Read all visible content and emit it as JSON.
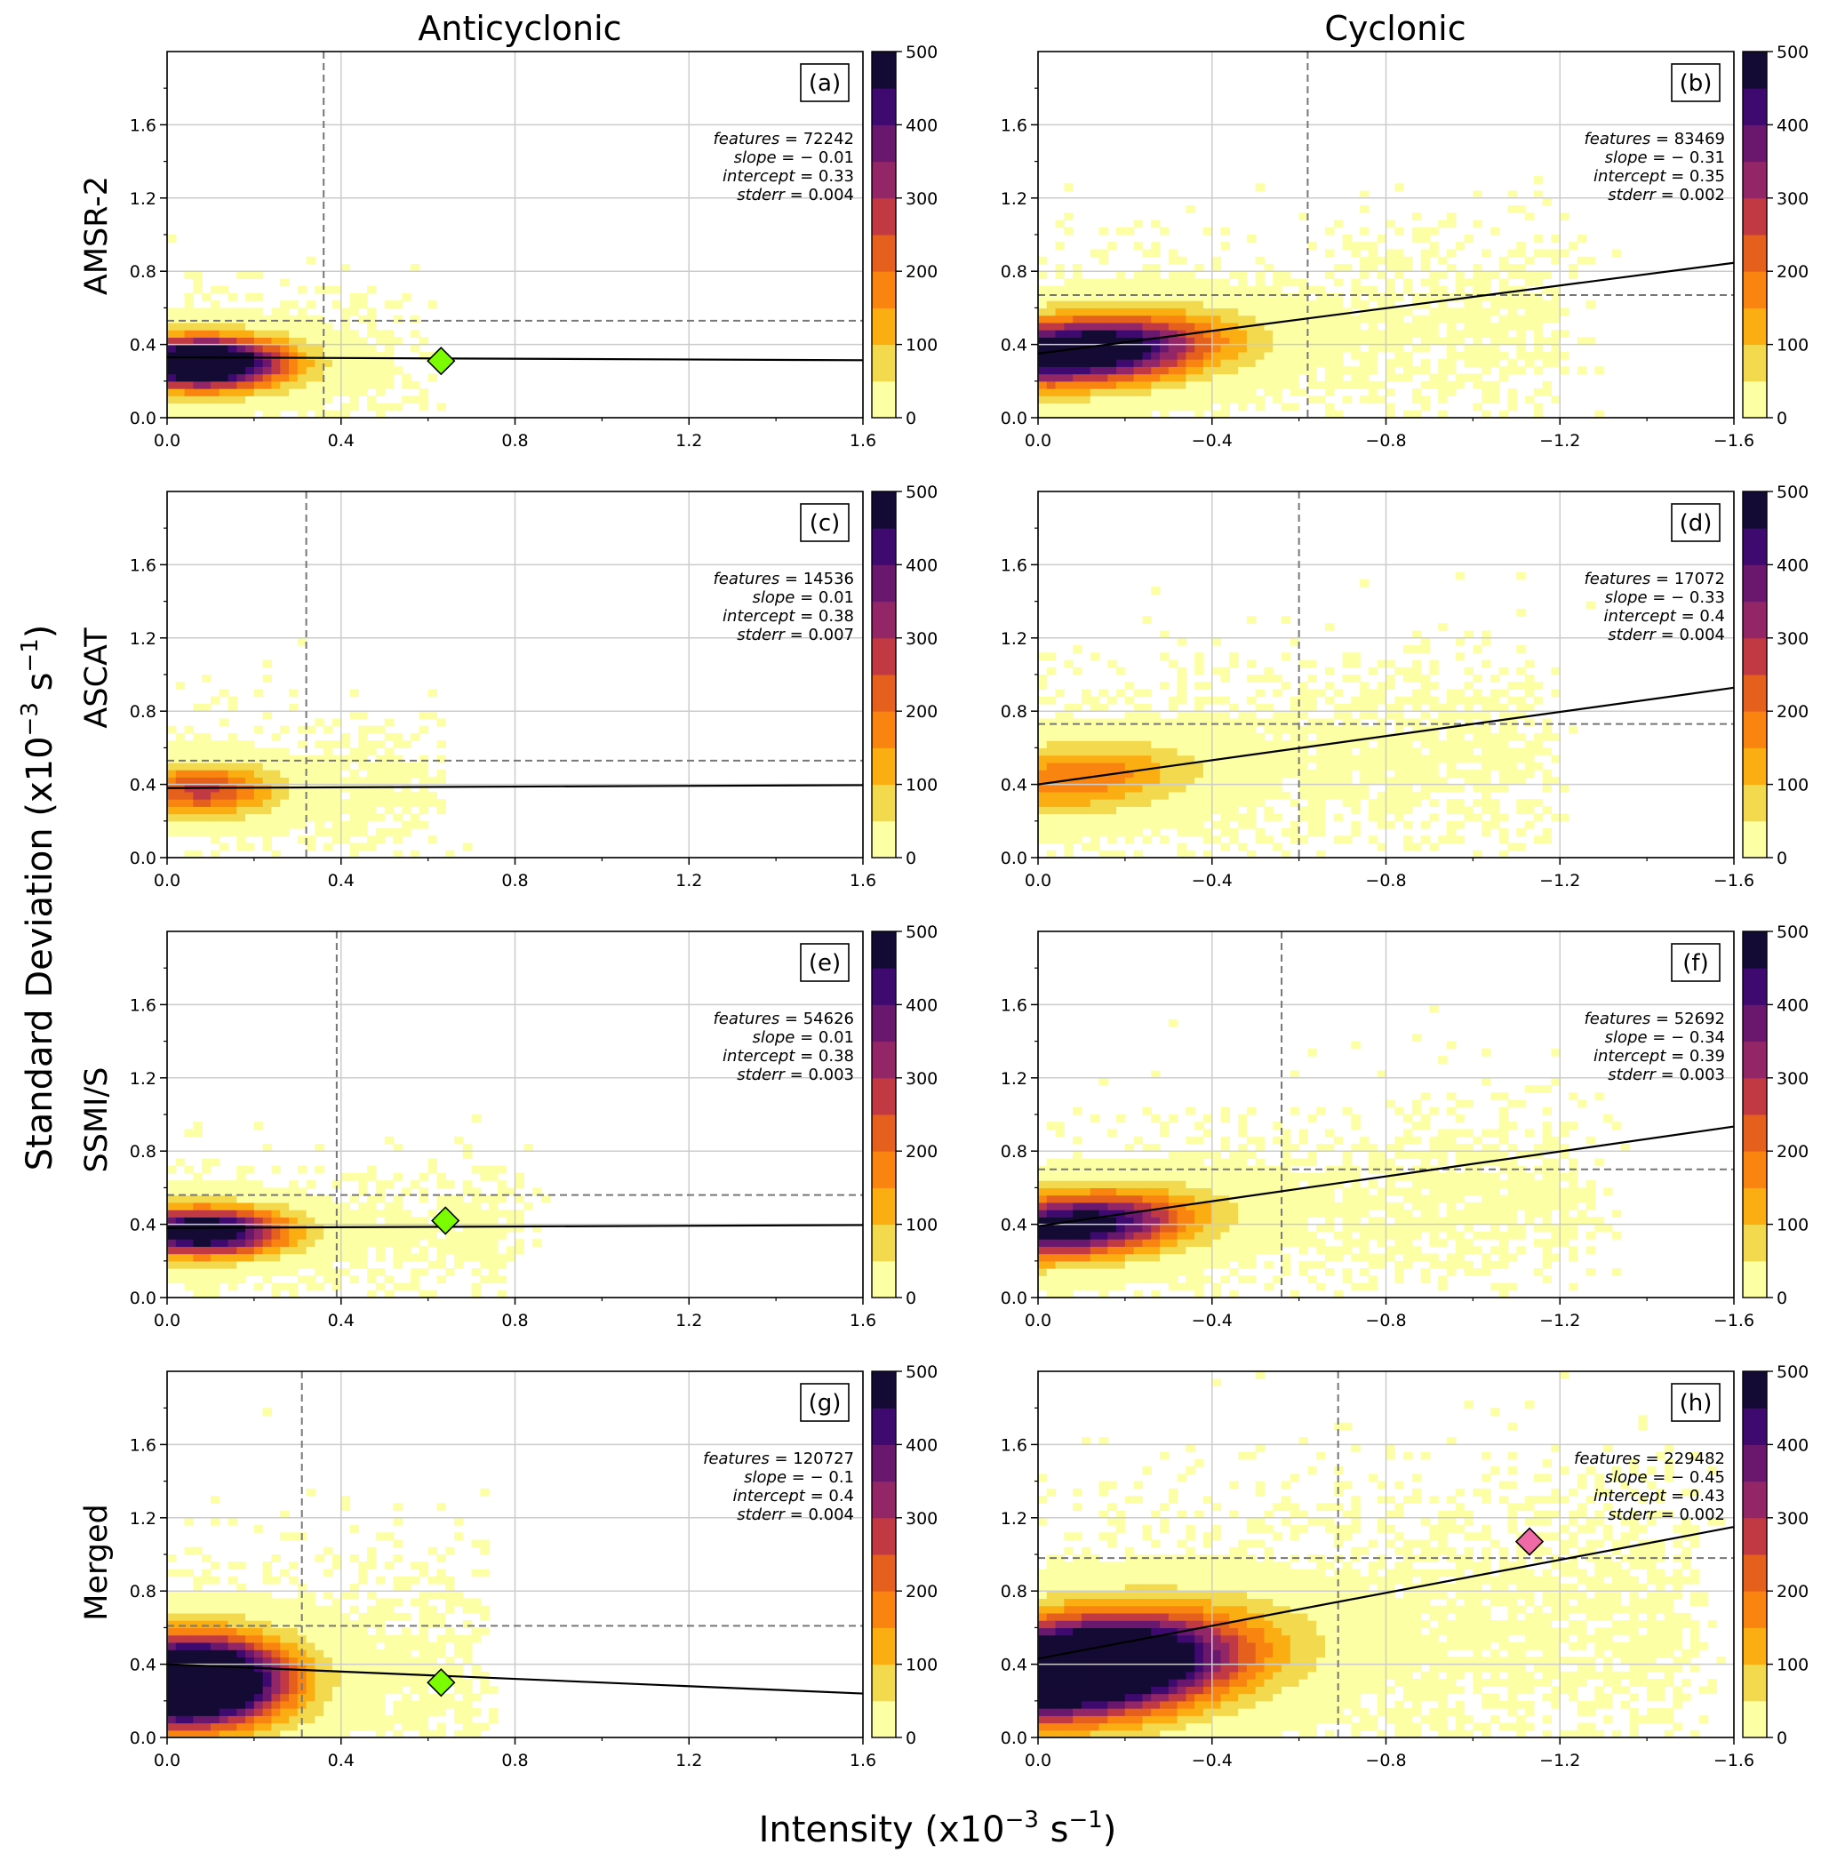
{
  "figure": {
    "column_titles": [
      "Anticyclonic",
      "Cyclonic"
    ],
    "row_labels": [
      "AMSR-2",
      "ASCAT",
      "SSMI/S",
      "Merged"
    ],
    "ylabel_main": "Standard Deviation (x10",
    "ylabel_exp": "−3",
    "ylabel_tail": "  s",
    "ylabel_unit_exp": "−1",
    "ylabel_close": ")",
    "xlabel_main": "Intensity (x10",
    "xlabel_exp": "−3",
    "xlabel_tail": "  s",
    "xlabel_unit_exp": "−1",
    "xlabel_close": ")",
    "colors": {
      "colormap": "inferno_r",
      "marker_anticyclonic": "#7cfc00",
      "marker_cyclonic": "#f06aa8",
      "reference_line": "#777777",
      "fit_line": "#000000",
      "grid": "#cccccc"
    }
  },
  "chart_data": [
    {
      "panel": "(a)",
      "type": "heatmap",
      "row": "AMSR-2",
      "column": "Anticyclonic",
      "xlim": [
        0,
        1.6
      ],
      "ylim": [
        0,
        2.0
      ],
      "xticks": [
        0.0,
        0.4,
        0.8,
        1.2,
        1.6
      ],
      "xtick_labels": [
        "0.0",
        "0.4",
        "0.8",
        "1.2",
        "1.6"
      ],
      "yticks": [
        0.0,
        0.4,
        0.8,
        1.2,
        1.6
      ],
      "ytick_labels": [
        "0.0",
        "0.4",
        "0.8",
        "1.2",
        "1.6"
      ],
      "features": "72242",
      "slope": "− 0.01",
      "intercept": "0.33",
      "stderr": "0.004",
      "fit_slope": -0.01,
      "fit_intercept": 0.33,
      "vline_x": 0.36,
      "hline_y": 0.53,
      "marker": {
        "x": 0.63,
        "y": 0.31,
        "color": "#7cfc00"
      },
      "density_center": [
        0.08,
        0.3
      ],
      "density_spread": [
        0.18,
        0.13
      ],
      "density_peak": 400,
      "core_extent": 0.5,
      "grid": true,
      "colorbar": {
        "range": [
          0,
          500
        ],
        "ticks": [
          "0",
          "100",
          "200",
          "300",
          "400",
          "500"
        ]
      }
    },
    {
      "panel": "(b)",
      "type": "heatmap",
      "row": "AMSR-2",
      "column": "Cyclonic",
      "xlim": [
        0,
        -1.6
      ],
      "ylim": [
        0,
        2.0
      ],
      "xticks": [
        0.0,
        -0.4,
        -0.8,
        -1.2,
        -1.6
      ],
      "xtick_labels": [
        "0.0",
        "−0.4",
        "−0.8",
        "−1.2",
        "−1.6"
      ],
      "yticks": [
        0.0,
        0.4,
        0.8,
        1.2,
        1.6
      ],
      "ytick_labels": [
        "0.0",
        "0.4",
        "0.8",
        "1.2",
        "1.6"
      ],
      "features": "83469",
      "slope": "− 0.31",
      "intercept": "0.35",
      "stderr": "0.002",
      "fit_slope": -0.31,
      "fit_intercept": 0.35,
      "vline_x": -0.62,
      "hline_y": 0.67,
      "marker": null,
      "density_center": [
        0.1,
        0.35
      ],
      "density_spread": [
        0.28,
        0.17
      ],
      "density_peak": 340,
      "core_extent": 1.15,
      "grid": true,
      "colorbar": {
        "range": [
          0,
          500
        ],
        "ticks": [
          "0",
          "100",
          "200",
          "300",
          "400",
          "500"
        ]
      }
    },
    {
      "panel": "(c)",
      "type": "heatmap",
      "row": "ASCAT",
      "column": "Anticyclonic",
      "xlim": [
        0,
        1.6
      ],
      "ylim": [
        0,
        2.0
      ],
      "xticks": [
        0.0,
        0.4,
        0.8,
        1.2,
        1.6
      ],
      "xtick_labels": [
        "0.0",
        "0.4",
        "0.8",
        "1.2",
        "1.6"
      ],
      "yticks": [
        0.0,
        0.4,
        0.8,
        1.2,
        1.6
      ],
      "ytick_labels": [
        "0.0",
        "0.4",
        "0.8",
        "1.2",
        "1.6"
      ],
      "features": "14536",
      "slope": "0.01",
      "intercept": "0.38",
      "stderr": "0.007",
      "fit_slope": 0.01,
      "fit_intercept": 0.38,
      "vline_x": 0.32,
      "hline_y": 0.53,
      "marker": null,
      "density_center": [
        0.08,
        0.37
      ],
      "density_spread": [
        0.16,
        0.13
      ],
      "density_peak": 150,
      "core_extent": 0.55,
      "grid": true,
      "colorbar": {
        "range": [
          0,
          500
        ],
        "ticks": [
          "0",
          "100",
          "200",
          "300",
          "400",
          "500"
        ]
      }
    },
    {
      "panel": "(d)",
      "type": "heatmap",
      "row": "ASCAT",
      "column": "Cyclonic",
      "xlim": [
        0,
        -1.6
      ],
      "ylim": [
        0,
        2.0
      ],
      "xticks": [
        0.0,
        -0.4,
        -0.8,
        -1.2,
        -1.6
      ],
      "xtick_labels": [
        "0.0",
        "−0.4",
        "−0.8",
        "−1.2",
        "−1.6"
      ],
      "yticks": [
        0.0,
        0.4,
        0.8,
        1.2,
        1.6
      ],
      "ytick_labels": [
        "0.0",
        "0.4",
        "0.8",
        "1.2",
        "1.6"
      ],
      "features": "17072",
      "slope": "− 0.33",
      "intercept": "0.4",
      "stderr": "0.004",
      "fit_slope": -0.33,
      "fit_intercept": 0.4,
      "vline_x": -0.6,
      "hline_y": 0.73,
      "marker": null,
      "density_center": [
        0.08,
        0.42
      ],
      "density_spread": [
        0.25,
        0.17
      ],
      "density_peak": 110,
      "core_extent": 1.1,
      "grid": true,
      "colorbar": {
        "range": [
          0,
          500
        ],
        "ticks": [
          "0",
          "100",
          "200",
          "300",
          "400",
          "500"
        ]
      }
    },
    {
      "panel": "(e)",
      "type": "heatmap",
      "row": "SSMI/S",
      "column": "Anticyclonic",
      "xlim": [
        0,
        1.6
      ],
      "ylim": [
        0,
        2.0
      ],
      "xticks": [
        0.0,
        0.4,
        0.8,
        1.2,
        1.6
      ],
      "xtick_labels": [
        "0.0",
        "0.4",
        "0.8",
        "1.2",
        "1.6"
      ],
      "yticks": [
        0.0,
        0.4,
        0.8,
        1.2,
        1.6
      ],
      "ytick_labels": [
        "0.0",
        "0.4",
        "0.8",
        "1.2",
        "1.6"
      ],
      "features": "54626",
      "slope": "0.01",
      "intercept": "0.38",
      "stderr": "0.003",
      "fit_slope": 0.01,
      "fit_intercept": 0.38,
      "vline_x": 0.39,
      "hline_y": 0.56,
      "marker": {
        "x": 0.64,
        "y": 0.42,
        "color": "#7cfc00"
      },
      "density_center": [
        0.08,
        0.36
      ],
      "density_spread": [
        0.18,
        0.12
      ],
      "density_peak": 330,
      "core_extent": 0.75,
      "grid": true,
      "colorbar": {
        "range": [
          0,
          500
        ],
        "ticks": [
          "0",
          "100",
          "200",
          "300",
          "400",
          "500"
        ]
      }
    },
    {
      "panel": "(f)",
      "type": "heatmap",
      "row": "SSMI/S",
      "column": "Cyclonic",
      "xlim": [
        0,
        -1.6
      ],
      "ylim": [
        0,
        2.0
      ],
      "xticks": [
        0.0,
        -0.4,
        -0.8,
        -1.2,
        -1.6
      ],
      "xtick_labels": [
        "0.0",
        "−0.4",
        "−0.8",
        "−1.2",
        "−1.6"
      ],
      "yticks": [
        0.0,
        0.4,
        0.8,
        1.2,
        1.6
      ],
      "ytick_labels": [
        "0.0",
        "0.4",
        "0.8",
        "1.2",
        "1.6"
      ],
      "features": "52692",
      "slope": "− 0.34",
      "intercept": "0.39",
      "stderr": "0.003",
      "fit_slope": -0.34,
      "fit_intercept": 0.39,
      "vline_x": -0.56,
      "hline_y": 0.7,
      "marker": null,
      "density_center": [
        0.08,
        0.38
      ],
      "density_spread": [
        0.25,
        0.16
      ],
      "density_peak": 300,
      "core_extent": 1.2,
      "grid": true,
      "colorbar": {
        "range": [
          0,
          500
        ],
        "ticks": [
          "0",
          "100",
          "200",
          "300",
          "400",
          "500"
        ]
      }
    },
    {
      "panel": "(g)",
      "type": "heatmap",
      "row": "Merged",
      "column": "Anticyclonic",
      "xlim": [
        0,
        1.6
      ],
      "ylim": [
        0,
        2.0
      ],
      "xticks": [
        0.0,
        0.4,
        0.8,
        1.2,
        1.6
      ],
      "xtick_labels": [
        "0.0",
        "0.4",
        "0.8",
        "1.2",
        "1.6"
      ],
      "yticks": [
        0.0,
        0.4,
        0.8,
        1.2,
        1.6
      ],
      "ytick_labels": [
        "0.0",
        "0.4",
        "0.8",
        "1.2",
        "1.6"
      ],
      "features": "120727",
      "slope": "− 0.1",
      "intercept": "0.4",
      "stderr": "0.004",
      "fit_slope": -0.1,
      "fit_intercept": 0.4,
      "vline_x": 0.31,
      "hline_y": 0.61,
      "marker": {
        "x": 0.63,
        "y": 0.3,
        "color": "#7cfc00"
      },
      "density_center": [
        0.05,
        0.3
      ],
      "density_spread": [
        0.2,
        0.22
      ],
      "density_peak": 520,
      "core_extent": 0.65,
      "grid": true,
      "colorbar": {
        "range": [
          0,
          500
        ],
        "ticks": [
          "0",
          "100",
          "200",
          "300",
          "400",
          "500"
        ]
      }
    },
    {
      "panel": "(h)",
      "type": "heatmap",
      "row": "Merged",
      "column": "Cyclonic",
      "xlim": [
        0,
        -1.6
      ],
      "ylim": [
        0,
        2.0
      ],
      "xticks": [
        0.0,
        -0.4,
        -0.8,
        -1.2,
        -1.6
      ],
      "xtick_labels": [
        "0.0",
        "−0.4",
        "−0.8",
        "−1.2",
        "−1.6"
      ],
      "yticks": [
        0.0,
        0.4,
        0.8,
        1.2,
        1.6
      ],
      "ytick_labels": [
        "0.0",
        "0.4",
        "0.8",
        "1.2",
        "1.6"
      ],
      "features": "229482",
      "slope": "− 0.45",
      "intercept": "0.43",
      "stderr": "0.002",
      "fit_slope": -0.45,
      "fit_intercept": 0.43,
      "vline_x": -0.69,
      "hline_y": 0.98,
      "marker": {
        "x": -1.13,
        "y": 1.07,
        "color": "#f06aa8"
      },
      "density_center": [
        0.1,
        0.36
      ],
      "density_spread": [
        0.33,
        0.25
      ],
      "density_peak": 480,
      "core_extent": 1.45,
      "grid": true,
      "colorbar": {
        "range": [
          0,
          500
        ],
        "ticks": [
          "0",
          "100",
          "200",
          "300",
          "400",
          "500"
        ]
      }
    }
  ]
}
